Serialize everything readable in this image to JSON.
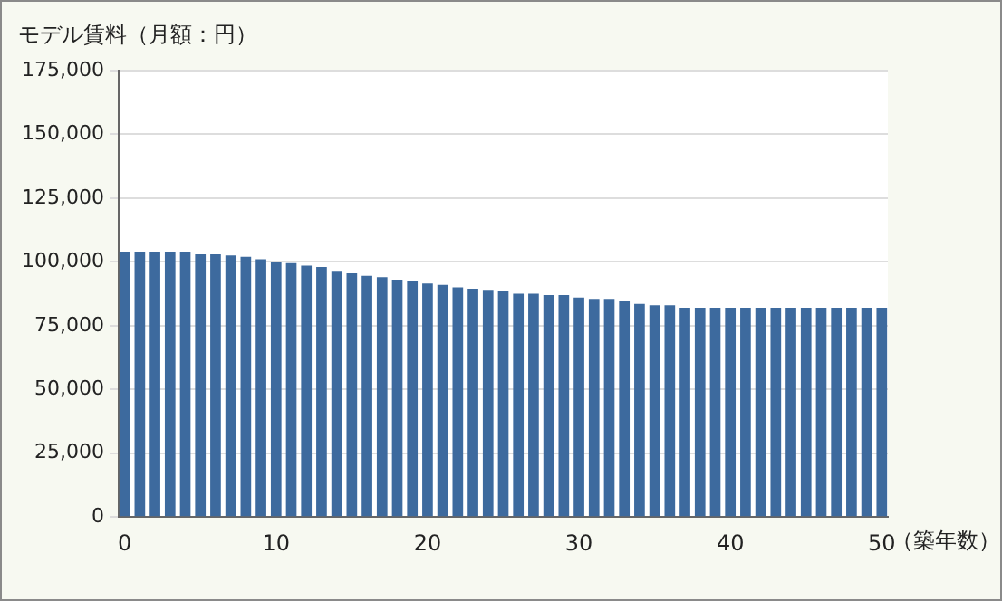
{
  "chart_data": {
    "type": "bar",
    "title": "モデル賃料（月額：円）",
    "xlabel": "（築年数）",
    "x": [
      0,
      1,
      2,
      3,
      4,
      5,
      6,
      7,
      8,
      9,
      10,
      11,
      12,
      13,
      14,
      15,
      16,
      17,
      18,
      19,
      20,
      21,
      22,
      23,
      24,
      25,
      26,
      27,
      28,
      29,
      30,
      31,
      32,
      33,
      34,
      35,
      36,
      37,
      38,
      39,
      40,
      41,
      42,
      43,
      44,
      45,
      46,
      47,
      48,
      49,
      50
    ],
    "values": [
      104000,
      104000,
      104000,
      104000,
      104000,
      103000,
      103000,
      102500,
      102000,
      101000,
      100000,
      99500,
      98500,
      98000,
      96500,
      95500,
      94500,
      94000,
      93000,
      92500,
      91500,
      91000,
      90000,
      89500,
      89000,
      88500,
      87500,
      87500,
      87000,
      87000,
      86000,
      85500,
      85500,
      84500,
      83500,
      83000,
      83000,
      82000,
      82000,
      82000,
      82000,
      82000,
      82000,
      82000,
      82000,
      82000,
      82000,
      82000,
      82000,
      82000,
      82000
    ],
    "color": "#3d6a9e",
    "xlim": [
      -0.4,
      50.4
    ],
    "xticks": [
      0,
      10,
      20,
      30,
      40,
      50
    ],
    "ylim": [
      0,
      175000
    ],
    "yticks": [
      0,
      {
        "value": 25000,
        "label": "25,000"
      },
      {
        "value": 50000,
        "label": "50,000"
      },
      {
        "value": 75000,
        "label": "75,000"
      },
      {
        "value": 100000,
        "label": "100,000"
      },
      {
        "value": 125000,
        "label": "125,000"
      },
      {
        "value": 150000,
        "label": "150,000"
      },
      {
        "value": 175000,
        "label": "175,000"
      }
    ],
    "grid": "y",
    "legend": false
  }
}
